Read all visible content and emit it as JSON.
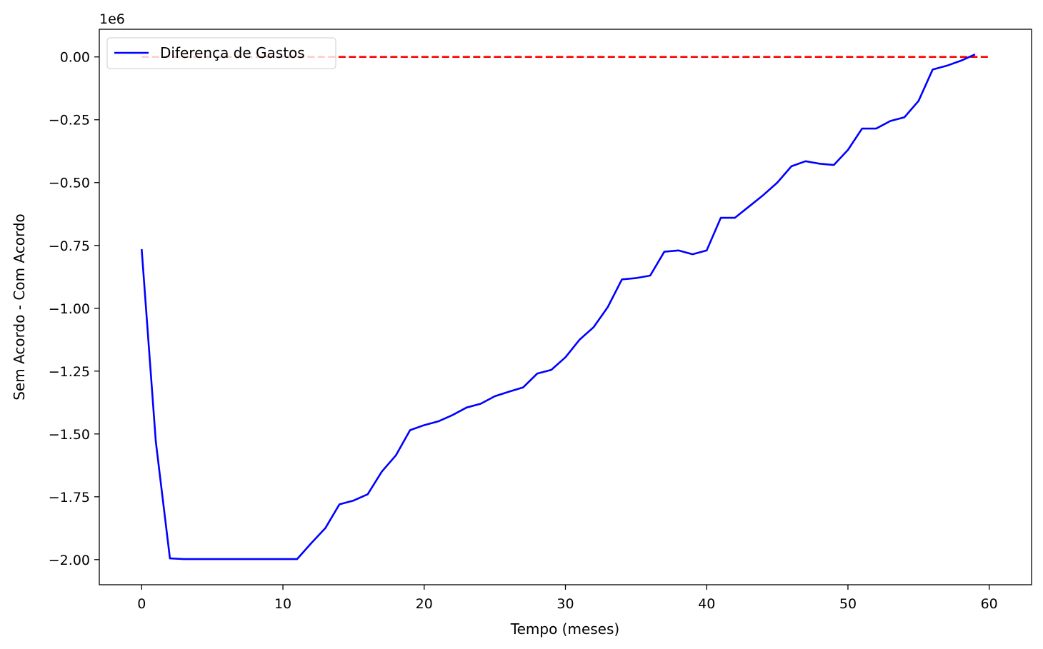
{
  "chart_data": {
    "type": "line",
    "title": "",
    "xlabel": "Tempo (meses)",
    "ylabel": "Sem Acordo - Com Acordo",
    "offset_label": "1e6",
    "xlim": [
      -3,
      63
    ],
    "ylim": [
      -2.1,
      0.11
    ],
    "xticks": [
      0,
      10,
      20,
      30,
      40,
      50,
      60
    ],
    "xtick_labels": [
      "0",
      "10",
      "20",
      "30",
      "40",
      "50",
      "60"
    ],
    "yticks": [
      0.0,
      -0.25,
      -0.5,
      -0.75,
      -1.0,
      -1.25,
      -1.5,
      -1.75,
      -2.0
    ],
    "ytick_labels": [
      "0.00",
      "−0.25",
      "−0.50",
      "−0.75",
      "−1.00",
      "−1.25",
      "−1.50",
      "−1.75",
      "−2.00"
    ],
    "grid": false,
    "legend_position": "top-left",
    "series": [
      {
        "name": "Diferença de Gastos",
        "color": "#0000ff",
        "style": "solid",
        "x": [
          0,
          1,
          2,
          3,
          4,
          5,
          6,
          7,
          8,
          9,
          10,
          11,
          12,
          13,
          14,
          15,
          16,
          17,
          18,
          19,
          20,
          21,
          22,
          23,
          24,
          25,
          26,
          27,
          28,
          29,
          30,
          31,
          32,
          33,
          34,
          35,
          36,
          37,
          38,
          39,
          40,
          41,
          42,
          43,
          44,
          45,
          46,
          47,
          48,
          49,
          50,
          51,
          52,
          53,
          54,
          55,
          56,
          57,
          58,
          59
        ],
        "y": [
          -0.765,
          -1.53,
          -1.995,
          -1.998,
          -1.998,
          -1.998,
          -1.998,
          -1.998,
          -1.998,
          -1.998,
          -1.998,
          -1.998,
          -1.935,
          -1.875,
          -1.78,
          -1.765,
          -1.74,
          -1.65,
          -1.585,
          -1.485,
          -1.465,
          -1.45,
          -1.425,
          -1.395,
          -1.38,
          -1.35,
          -1.332,
          -1.315,
          -1.26,
          -1.245,
          -1.195,
          -1.125,
          -1.075,
          -0.995,
          -0.885,
          -0.88,
          -0.87,
          -0.775,
          -0.77,
          -0.785,
          -0.77,
          -0.64,
          -0.64,
          -0.595,
          -0.55,
          -0.5,
          -0.435,
          -0.415,
          -0.425,
          -0.43,
          -0.37,
          -0.285,
          -0.285,
          -0.255,
          -0.24,
          -0.175,
          -0.05,
          -0.035,
          -0.015,
          0.01
        ]
      },
      {
        "color": "#ff0000",
        "style": "dashed",
        "x": [
          0,
          60
        ],
        "y": [
          0,
          0
        ]
      }
    ]
  }
}
